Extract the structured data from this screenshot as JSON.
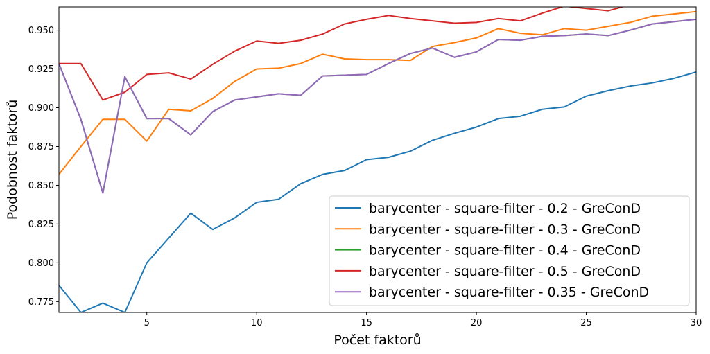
{
  "chart_data": {
    "type": "line",
    "xlabel": "Počet faktorů",
    "ylabel": "Podobnost faktorů",
    "xlim": [
      1,
      30
    ],
    "ylim": [
      0.768,
      0.965
    ],
    "xticks": [
      5,
      10,
      15,
      20,
      25,
      30
    ],
    "yticks": [
      0.775,
      0.8,
      0.825,
      0.85,
      0.875,
      0.9,
      0.925,
      0.95
    ],
    "xtick_labels": [
      "5",
      "10",
      "15",
      "20",
      "25",
      "30"
    ],
    "ytick_labels": [
      "0.775",
      "0.800",
      "0.825",
      "0.850",
      "0.875",
      "0.900",
      "0.925",
      "0.950"
    ],
    "grid": false,
    "legend_position": "bottom-right",
    "x": [
      1,
      2,
      3,
      4,
      5,
      6,
      7,
      8,
      9,
      10,
      11,
      12,
      13,
      14,
      15,
      16,
      17,
      18,
      19,
      20,
      21,
      22,
      23,
      24,
      25,
      26,
      27,
      28,
      29,
      30
    ],
    "series": [
      {
        "name": "barycenter - square-filter - 0.2 - GreConD",
        "color": "#1f77b4",
        "values": [
          0.7855,
          0.768,
          0.774,
          0.768,
          0.8,
          0.816,
          0.832,
          0.8215,
          0.829,
          0.839,
          0.841,
          0.851,
          0.857,
          0.8595,
          0.8665,
          0.868,
          0.872,
          0.879,
          0.8835,
          0.8875,
          0.893,
          0.8945,
          0.899,
          0.9005,
          0.9075,
          0.911,
          0.914,
          0.916,
          0.919,
          0.923
        ]
      },
      {
        "name": "barycenter - square-filter - 0.3 - GreConD",
        "color": "#ff7f0e",
        "values": [
          0.857,
          0.875,
          0.8925,
          0.8925,
          0.8785,
          0.899,
          0.898,
          0.906,
          0.917,
          0.925,
          0.9255,
          0.9285,
          0.9345,
          0.9315,
          0.931,
          0.931,
          0.9305,
          0.9395,
          0.942,
          0.945,
          0.951,
          0.948,
          0.947,
          0.951,
          0.95,
          0.9525,
          0.955,
          0.959,
          0.9605,
          0.962
        ]
      },
      {
        "name": "barycenter - square-filter - 0.4 - GreConD",
        "color": "#2ca02c",
        "values": [
          0.9285,
          0.8925,
          0.845,
          0.92,
          0.893,
          0.893,
          0.8825,
          0.8975,
          0.905,
          0.907,
          0.909,
          0.908,
          0.9205,
          0.921,
          0.9215,
          0.9285,
          0.935,
          0.9385,
          0.9325,
          0.936,
          0.944,
          0.9435,
          0.946,
          0.9465,
          0.9475,
          0.9465,
          0.95,
          0.954,
          0.9555,
          0.957
        ]
      },
      {
        "name": "barycenter - square-filter - 0.5 - GreConD",
        "color": "#d62728",
        "values": [
          0.9285,
          0.9285,
          0.905,
          0.91,
          0.9215,
          0.9225,
          0.9185,
          0.928,
          0.9365,
          0.943,
          0.9415,
          0.9435,
          0.9475,
          0.954,
          0.957,
          0.9595,
          0.9575,
          0.956,
          0.9545,
          0.955,
          0.9575,
          0.956,
          0.961,
          0.9655,
          0.964,
          0.9625,
          0.9665,
          0.968,
          0.9695,
          0.971
        ]
      },
      {
        "name": "barycenter - square-filter - 0.35 - GreConD",
        "color": "#9467bd",
        "values": [
          0.9285,
          0.8925,
          0.845,
          0.92,
          0.893,
          0.893,
          0.8825,
          0.8975,
          0.905,
          0.907,
          0.909,
          0.908,
          0.9205,
          0.921,
          0.9215,
          0.9285,
          0.935,
          0.9385,
          0.9325,
          0.936,
          0.944,
          0.9435,
          0.946,
          0.9465,
          0.9475,
          0.9465,
          0.95,
          0.954,
          0.9555,
          0.957
        ]
      }
    ]
  }
}
